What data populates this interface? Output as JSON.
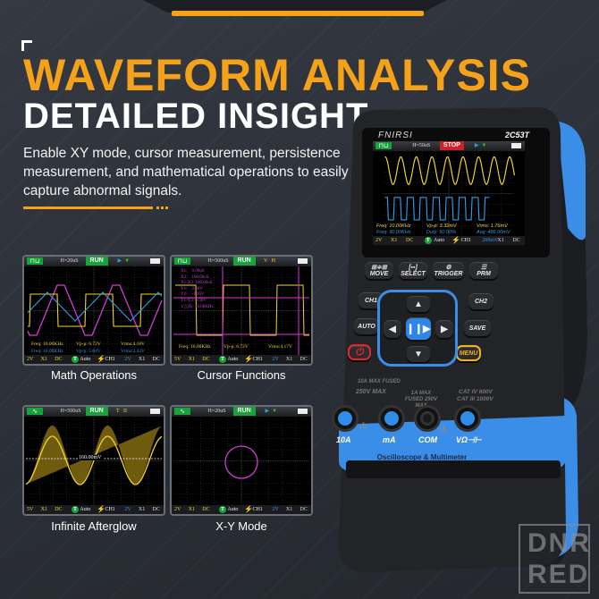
{
  "header": {
    "title": "WAVEFORM ANALYSIS",
    "subtitle": "DETAILED INSIGHT",
    "description": "Enable XY mode, cursor measurement, persistence measurement, and mathematical operations to easily capture abnormal signals."
  },
  "colors": {
    "accent": "#f5a21b",
    "ch1": "#f2d531",
    "ch2": "#2f9be6",
    "math": "#d23ad6",
    "run": "#19a33a",
    "device_blue": "#3a8ee8"
  },
  "screens": [
    {
      "caption": "Math Operations",
      "mode_icon": "square-wave-icon",
      "timebase": "H=20uS",
      "status": "RUN",
      "trig": "",
      "readouts": [
        [
          "Freq: 10.00KHz",
          "Vp-p: 6.72V",
          "Vrms:4.18V"
        ],
        [
          "Freq: 10.00KHz",
          "Vp-p: 5.04V",
          "Vrms:3.43V"
        ]
      ],
      "cursor": [],
      "level": "",
      "bottom": [
        "2V",
        "X1",
        "DC",
        "Auto",
        "CH1",
        "2V",
        "X1",
        "DC"
      ]
    },
    {
      "caption": "Cursor Functions",
      "mode_icon": "square-wave-icon",
      "timebase": "H=500uS",
      "status": "RUN",
      "trig": "V   H",
      "readouts": [
        [
          "Freq: 10.00KHz",
          "Vp-p: 6.72V",
          "Vrms:4.17V"
        ]
      ],
      "cursor": [
        "X1:    0.00uS",
        "X2:    100.00uS",
        "X1-X2: 100.00uS",
        "Y1:    3.20V",
        "Y2:    -3.36V",
        "Y1-Y2: 6.56V",
        "1/△|X|: 10.00KHz"
      ],
      "level": "",
      "bottom": [
        "5V",
        "X1",
        "DC",
        "Auto",
        "CH1",
        "2V",
        "X1",
        "DC"
      ]
    },
    {
      "caption": "Infinite Afterglow",
      "mode_icon": "sine-wave-icon",
      "timebase": "H=500uS",
      "status": "RUN",
      "trig": "T   II",
      "readouts": [],
      "cursor": [],
      "level": "160.00mV",
      "bottom": [
        "5V",
        "X1",
        "DC",
        "Auto",
        "CH1",
        "2V",
        "X1",
        "DC"
      ]
    },
    {
      "caption": "X-Y Mode",
      "mode_icon": "sine-wave-icon",
      "timebase": "H=20uS",
      "status": "RUN",
      "trig": "",
      "readouts": [],
      "cursor": [],
      "level": "",
      "bottom": [
        "2V",
        "X1",
        "DC",
        "Auto",
        "CH1",
        "2V",
        "X1",
        "DC"
      ]
    }
  ],
  "device": {
    "brand": "FNIRSI",
    "model": "2C53T",
    "screen": {
      "timebase": "H=50uS",
      "status": "STOP",
      "readouts": [
        [
          "Freq: 10.00KHz",
          "Vp-p: 3.32mV",
          "Vrms: 1.76mV"
        ],
        [
          "Freq: 90.00KHz",
          "Duty: 50.00%",
          "Avg: 486.00mV"
        ]
      ],
      "bottom": [
        "2V",
        "X1",
        "DC",
        "Auto",
        "CH1",
        "200mV",
        "X1",
        "DC"
      ]
    },
    "buttons": {
      "move": "MOVE",
      "select": "SELECT",
      "trigger": "TRIGGER",
      "prm": "PRM",
      "ch1": "CH1",
      "ch2": "CH2",
      "auto": "AUTO",
      "save": "SAVE",
      "menu": "MENU"
    },
    "jack_labels": {
      "fused10a": "10A MAX FUSED",
      "max250": "250V MAX",
      "fused1a": "1A MAX FUSED 250V MAX",
      "cat4": "CAT IV 600V",
      "cat3": "CAT III 1000V"
    },
    "jacks": [
      "10A",
      "mA",
      "COM",
      "VΩ⊣⊢"
    ],
    "footer": "Oscilloscope & Multimeter"
  },
  "watermark": "DNR RED"
}
